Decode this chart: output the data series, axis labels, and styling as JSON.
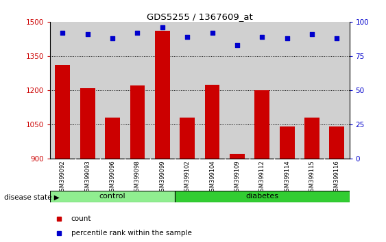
{
  "title": "GDS5255 / 1367609_at",
  "samples": [
    "GSM399092",
    "GSM399093",
    "GSM399096",
    "GSM399098",
    "GSM399099",
    "GSM399102",
    "GSM399104",
    "GSM399109",
    "GSM399112",
    "GSM399114",
    "GSM399115",
    "GSM399116"
  ],
  "counts": [
    1310,
    1210,
    1080,
    1220,
    1460,
    1080,
    1225,
    920,
    1200,
    1040,
    1080,
    1040
  ],
  "percentiles": [
    92,
    91,
    88,
    92,
    96,
    89,
    92,
    83,
    89,
    88,
    91,
    88
  ],
  "ylim_left": [
    900,
    1500
  ],
  "ylim_right": [
    0,
    100
  ],
  "yticks_left": [
    900,
    1050,
    1200,
    1350,
    1500
  ],
  "yticks_right": [
    0,
    25,
    50,
    75,
    100
  ],
  "bar_color": "#cc0000",
  "dot_color": "#0000cc",
  "bar_width": 0.6,
  "control_n": 5,
  "diabetes_n": 7,
  "control_label": "control",
  "diabetes_label": "diabetes",
  "disease_state_label": "disease state",
  "legend_count": "count",
  "legend_percentile": "percentile rank within the sample",
  "control_color": "#90ee90",
  "diabetes_color": "#32cd32",
  "tick_label_color_left": "#cc0000",
  "tick_label_color_right": "#0000cc",
  "sample_bg_color": "#d0d0d0",
  "plot_bg_color": "#ffffff"
}
